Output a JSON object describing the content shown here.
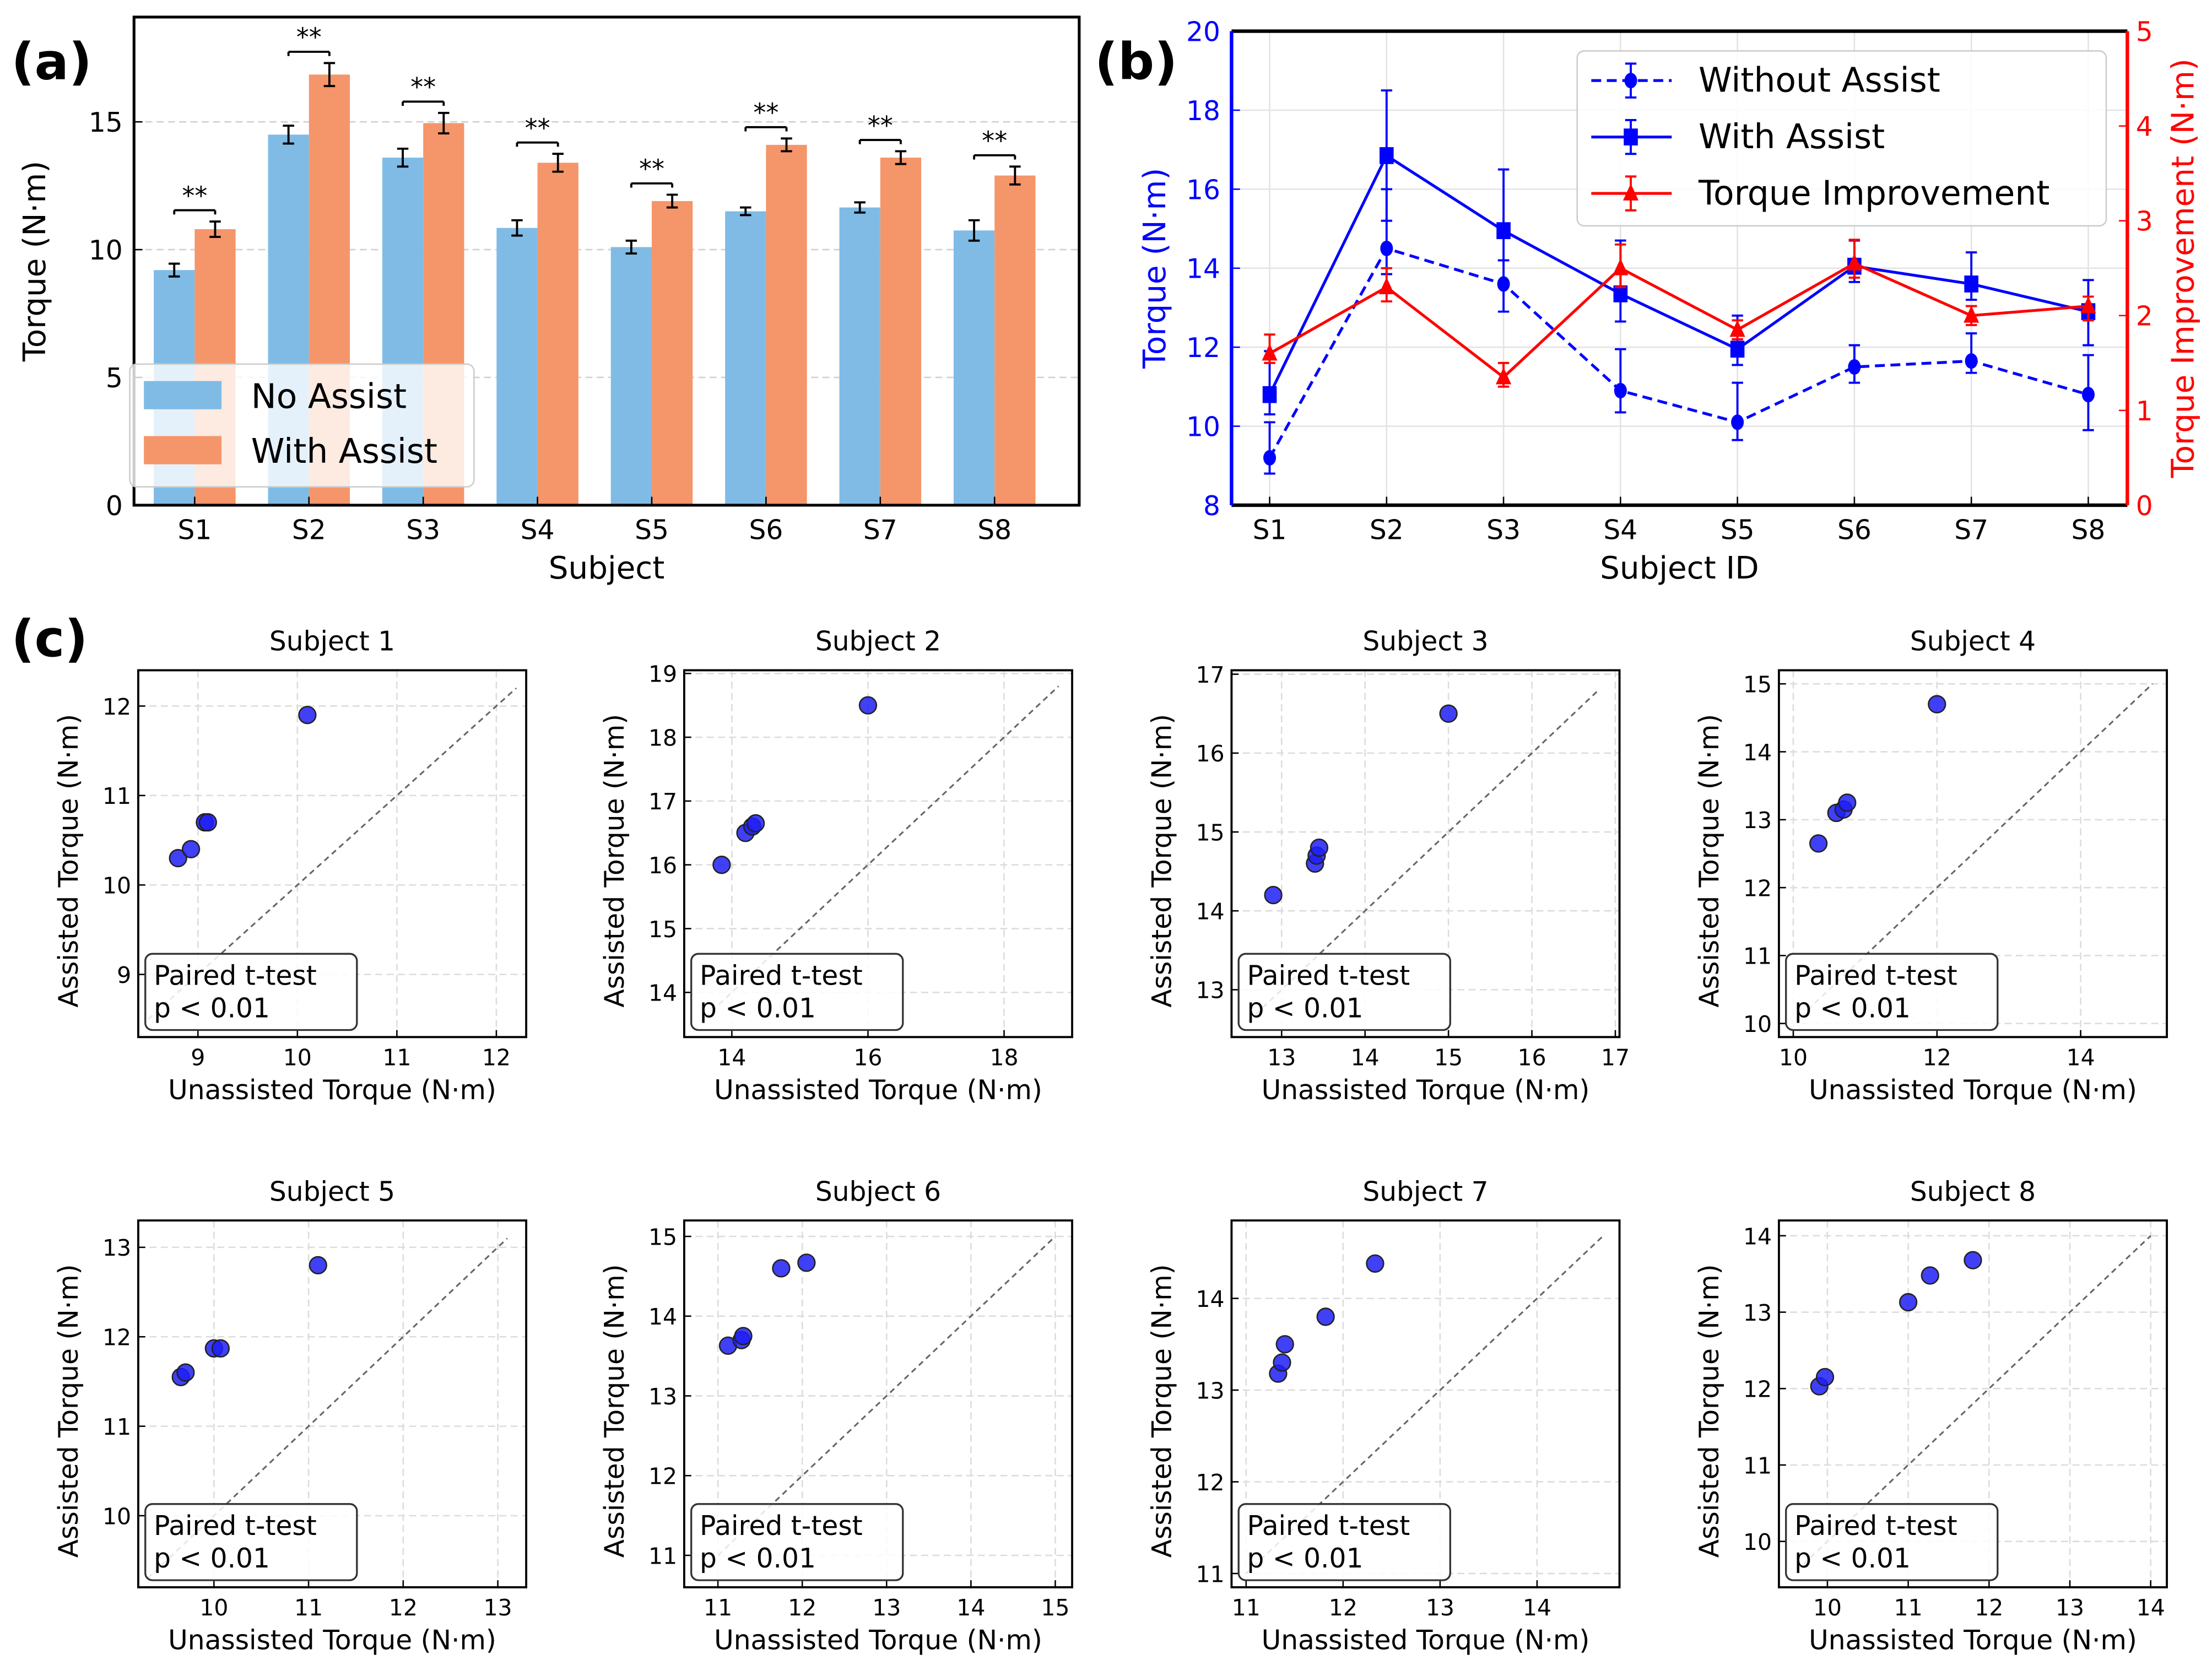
{
  "panel_labels": [
    "(a)",
    "(b)",
    "(c)"
  ],
  "chart_data": [
    {
      "type": "bar",
      "panel": "(a)",
      "categories": [
        "S1",
        "S2",
        "S3",
        "S4",
        "S5",
        "S6",
        "S7",
        "S8"
      ],
      "series": [
        {
          "name": "No Assist",
          "color": "#7fbbe5",
          "values": [
            9.2,
            14.5,
            13.6,
            10.85,
            10.1,
            11.5,
            11.65,
            10.75
          ],
          "errors": [
            0.25,
            0.35,
            0.35,
            0.3,
            0.25,
            0.15,
            0.2,
            0.4
          ]
        },
        {
          "name": "With Assist",
          "color": "#f5956a",
          "values": [
            10.8,
            16.85,
            14.95,
            13.4,
            11.9,
            14.1,
            13.6,
            12.9
          ],
          "errors": [
            0.3,
            0.45,
            0.4,
            0.35,
            0.25,
            0.25,
            0.25,
            0.35
          ]
        }
      ],
      "significance": [
        "**",
        "**",
        "**",
        "**",
        "**",
        "**",
        "**",
        "**"
      ],
      "xlabel": "Subject",
      "ylabel": "Torque (N·m)",
      "ylim": [
        0,
        19.1
      ],
      "yticks": [
        0,
        5,
        10,
        15
      ],
      "grid": "y-dashed",
      "legend": "lower-left"
    },
    {
      "type": "line",
      "panel": "(b)",
      "categories": [
        "S1",
        "S2",
        "S3",
        "S4",
        "S5",
        "S6",
        "S7",
        "S8"
      ],
      "series": [
        {
          "name": "Without Assist",
          "axis": "left",
          "color": "#0000ff",
          "style": "dashed",
          "marker": "circle",
          "values": [
            9.2,
            14.5,
            13.6,
            10.9,
            10.1,
            11.5,
            11.65,
            10.8
          ],
          "err_low": [
            8.8,
            13.85,
            12.9,
            10.35,
            9.65,
            11.1,
            11.35,
            9.9
          ],
          "err_high": [
            10.1,
            16.0,
            14.2,
            11.95,
            11.1,
            12.05,
            12.35,
            11.8
          ]
        },
        {
          "name": "With Assist",
          "axis": "left",
          "color": "#0000ff",
          "style": "solid",
          "marker": "square",
          "values": [
            10.8,
            16.85,
            14.95,
            13.35,
            11.95,
            14.05,
            13.6,
            12.9
          ],
          "err_low": [
            10.3,
            15.2,
            14.2,
            12.65,
            11.55,
            13.65,
            13.2,
            12.05
          ],
          "err_high": [
            11.9,
            18.5,
            16.5,
            14.7,
            12.8,
            14.7,
            14.4,
            13.7
          ]
        },
        {
          "name": "Torque Improvement",
          "axis": "right",
          "color": "#ff0000",
          "style": "solid",
          "marker": "triangle",
          "values": [
            1.6,
            2.3,
            1.35,
            2.5,
            1.85,
            2.55,
            2.0,
            2.1
          ],
          "err_low": [
            1.5,
            2.15,
            1.25,
            2.3,
            1.75,
            2.4,
            1.9,
            1.95
          ],
          "err_high": [
            1.8,
            2.5,
            1.5,
            2.75,
            1.95,
            2.8,
            2.1,
            2.2
          ]
        }
      ],
      "xlabel": "Subject ID",
      "ylabel_left": "Torque (N·m)",
      "ylabel_right": "Torque Improvement (N·m)",
      "ylim_left": [
        8,
        20
      ],
      "yticks_left": [
        8,
        10,
        12,
        14,
        16,
        18,
        20
      ],
      "ylim_right": [
        0,
        5
      ],
      "yticks_right": [
        0,
        1,
        2,
        3,
        4,
        5
      ],
      "grid": "on",
      "legend": "top-right"
    },
    {
      "type": "scatter",
      "panel": "(c)",
      "title": "Subject 1",
      "xlim": [
        8.4,
        12.3
      ],
      "ylim": [
        8.3,
        12.4
      ],
      "xticks": [
        9,
        10,
        11,
        12
      ],
      "yticks": [
        9,
        10,
        11,
        12
      ],
      "x": [
        8.8,
        8.93,
        9.07,
        9.1,
        10.1
      ],
      "y": [
        10.3,
        10.4,
        10.7,
        10.7,
        11.9
      ],
      "identity": [
        8.5,
        12.2
      ]
    },
    {
      "type": "scatter",
      "panel": "(c)",
      "title": "Subject 2",
      "xlim": [
        13.3,
        19.0
      ],
      "ylim": [
        13.3,
        19.05
      ],
      "xticks": [
        14,
        16,
        18
      ],
      "yticks": [
        14,
        15,
        16,
        17,
        18,
        19
      ],
      "x": [
        13.85,
        14.2,
        14.3,
        14.35,
        16.0
      ],
      "y": [
        16.0,
        16.5,
        16.6,
        16.65,
        18.5
      ],
      "identity": [
        13.6,
        18.8
      ]
    },
    {
      "type": "scatter",
      "panel": "(c)",
      "title": "Subject 3",
      "xlim": [
        12.4,
        17.05
      ],
      "ylim": [
        12.4,
        17.05
      ],
      "xticks": [
        13,
        14,
        15,
        16,
        17
      ],
      "yticks": [
        13,
        14,
        15,
        16,
        17
      ],
      "x": [
        12.9,
        13.4,
        13.42,
        13.45,
        15.0
      ],
      "y": [
        14.2,
        14.6,
        14.7,
        14.8,
        16.5
      ],
      "identity": [
        12.6,
        16.8
      ]
    },
    {
      "type": "scatter",
      "panel": "(c)",
      "title": "Subject 4",
      "xlim": [
        9.8,
        15.2
      ],
      "ylim": [
        9.8,
        15.2
      ],
      "xticks": [
        10,
        12,
        14
      ],
      "yticks": [
        10,
        11,
        12,
        13,
        14,
        15
      ],
      "x": [
        10.35,
        10.6,
        10.7,
        10.75,
        12.0
      ],
      "y": [
        12.65,
        13.1,
        13.15,
        13.25,
        14.7
      ],
      "identity": [
        10.2,
        15.0
      ]
    },
    {
      "type": "scatter",
      "panel": "(c)",
      "title": "Subject 5",
      "xlim": [
        9.2,
        13.3
      ],
      "ylim": [
        9.2,
        13.3
      ],
      "xticks": [
        10,
        11,
        12,
        13
      ],
      "yticks": [
        10,
        11,
        12,
        13
      ],
      "x": [
        9.65,
        9.7,
        10.0,
        10.07,
        11.1
      ],
      "y": [
        11.55,
        11.6,
        11.87,
        11.87,
        12.8
      ],
      "identity": [
        9.3,
        13.1
      ]
    },
    {
      "type": "scatter",
      "panel": "(c)",
      "title": "Subject 6",
      "xlim": [
        10.6,
        15.2
      ],
      "ylim": [
        10.6,
        15.2
      ],
      "xticks": [
        11,
        12,
        13,
        14,
        15
      ],
      "yticks": [
        11,
        12,
        13,
        14,
        15
      ],
      "x": [
        11.12,
        11.28,
        11.3,
        11.75,
        12.05
      ],
      "y": [
        13.63,
        13.7,
        13.75,
        14.6,
        14.67
      ],
      "identity": [
        11.0,
        15.0
      ]
    },
    {
      "type": "scatter",
      "panel": "(c)",
      "title": "Subject 7",
      "xlim": [
        10.85,
        14.85
      ],
      "ylim": [
        10.85,
        14.85
      ],
      "xticks": [
        11,
        12,
        13,
        14
      ],
      "yticks": [
        11,
        12,
        13,
        14
      ],
      "x": [
        11.33,
        11.37,
        11.4,
        11.82,
        12.33
      ],
      "y": [
        13.18,
        13.3,
        13.5,
        13.8,
        14.38
      ],
      "identity": [
        11.0,
        14.7
      ]
    },
    {
      "type": "scatter",
      "panel": "(c)",
      "title": "Subject 8",
      "xlim": [
        9.4,
        14.2
      ],
      "ylim": [
        9.4,
        14.2
      ],
      "xticks": [
        10,
        11,
        12,
        13,
        14
      ],
      "yticks": [
        10,
        11,
        12,
        13,
        14
      ],
      "x": [
        9.9,
        9.97,
        11.0,
        11.27,
        11.8
      ],
      "y": [
        12.03,
        12.15,
        13.13,
        13.48,
        13.68
      ],
      "identity": [
        9.7,
        14.0
      ]
    }
  ],
  "scatter_common": {
    "xlabel": "Unassisted Torque (N·m)",
    "ylabel": "Assisted Torque (N·m)",
    "annotation": [
      "Paired t-test",
      "p < 0.01"
    ],
    "point_color": "#1f1ff5"
  }
}
